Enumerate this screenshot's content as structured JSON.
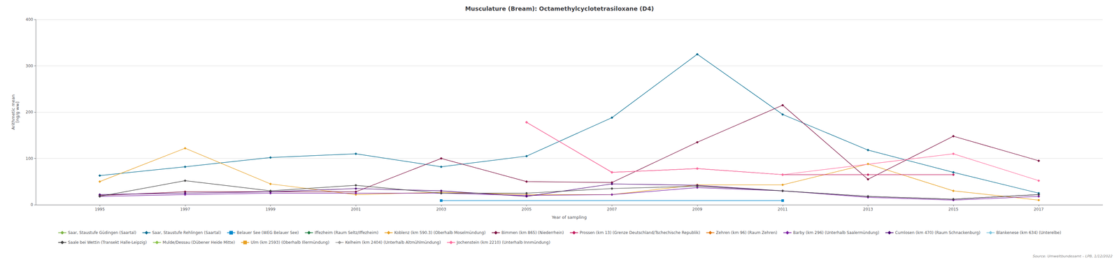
{
  "chart_data": {
    "type": "line",
    "title": "Musculature (Bream): Octamethylcyclotetrasiloxane (D4)",
    "xlabel": "Year of sampling",
    "ylabel": "Arithmetic mean\n[ng/g ww]",
    "source": "Source: Umweltbundesamt – LPB, 1/12/2022",
    "x": [
      1995,
      1997,
      1999,
      2001,
      2003,
      2005,
      2007,
      2009,
      2011,
      2013,
      2015,
      2017
    ],
    "xlim": [
      1993.5,
      2018.5
    ],
    "xticks": [
      1995,
      1997,
      1999,
      2001,
      2003,
      2005,
      2007,
      2009,
      2011,
      2013,
      2015,
      2017
    ],
    "ylim": [
      0,
      400
    ],
    "yticks": [
      0,
      100,
      200,
      300,
      400
    ],
    "grid": true,
    "legend": "bottom",
    "series": [
      {
        "name": "Saar, Staustufe Güdingen (Saartal)",
        "color": "#7cb342",
        "marker": "diamond",
        "values": [
          null,
          null,
          null,
          null,
          null,
          null,
          null,
          null,
          null,
          null,
          null,
          null
        ]
      },
      {
        "name": "Saar, Staustufe Rehlingen (Saartal)",
        "color": "#006b8f",
        "marker": "diamond",
        "values": [
          63,
          82,
          102,
          110,
          82,
          105,
          188,
          325,
          195,
          118,
          70,
          25
        ]
      },
      {
        "name": "Belauer See (WEG Belauer See)",
        "color": "#0088cc",
        "marker": "square",
        "values": [
          null,
          null,
          null,
          null,
          9,
          null,
          null,
          null,
          9,
          null,
          null,
          null
        ]
      },
      {
        "name": "Iffezheim (Raum Seltz/Iffezheim)",
        "color": "#1b7a3e",
        "marker": "diamond",
        "values": [
          null,
          null,
          null,
          null,
          null,
          null,
          null,
          null,
          null,
          null,
          null,
          null
        ]
      },
      {
        "name": "Koblenz (km 590.3) (Oberhalb Moselmündung)",
        "color": "#e8a020",
        "marker": "diamond",
        "values": [
          50,
          122,
          45,
          22,
          27,
          22,
          22,
          43,
          43,
          88,
          30,
          10
        ]
      },
      {
        "name": "Bimmen (km 865) (Niederrhein)",
        "color": "#7b0d3e",
        "marker": "diamond",
        "values": [
          20,
          28,
          28,
          28,
          100,
          50,
          48,
          135,
          215,
          55,
          148,
          95
        ]
      },
      {
        "name": "Prossen (km 13) (Grenze Deutschland/Tschechische Republik)",
        "color": "#c2185b",
        "marker": "diamond",
        "values": [
          null,
          null,
          null,
          null,
          null,
          178,
          70,
          78,
          65,
          65,
          65,
          null
        ]
      },
      {
        "name": "Zehren (km 96) (Raum Zehren)",
        "color": "#e07000",
        "marker": "diamond",
        "values": [
          null,
          null,
          null,
          null,
          null,
          null,
          null,
          null,
          null,
          null,
          null,
          null
        ]
      },
      {
        "name": "Barby (km 296) (Unterhalb Saalermündung)",
        "color": "#7b1fa2",
        "marker": "diamond",
        "values": [
          18,
          22,
          25,
          25,
          25,
          20,
          22,
          37,
          30,
          16,
          10,
          18
        ]
      },
      {
        "name": "Cumlosen (km 470) (Raum Schnackenburg)",
        "color": "#4a0072",
        "marker": "diamond",
        "values": [
          22,
          25,
          28,
          35,
          30,
          18,
          45,
          42,
          30,
          18,
          12,
          22
        ]
      },
      {
        "name": "Blankenese (km 634) (Unterelbe)",
        "color": "#80c8e0",
        "marker": "diamond",
        "values": [
          null,
          null,
          null,
          null,
          null,
          null,
          null,
          null,
          null,
          null,
          null,
          null
        ]
      },
      {
        "name": "Saale bei Wettin (Transekt Halle-Leipzig)",
        "color": "#424242",
        "marker": "diamond",
        "values": [
          18,
          52,
          30,
          42,
          25,
          25,
          35,
          40,
          30,
          18,
          12,
          22
        ]
      },
      {
        "name": "Mulde/Dessau (Dübener Heide Mitte)",
        "color": "#8bc34a",
        "marker": "diamond",
        "values": [
          null,
          null,
          null,
          null,
          null,
          null,
          null,
          null,
          null,
          null,
          null,
          null
        ]
      },
      {
        "name": "Ulm (km 2593) (Oberhalb Illermündung)",
        "color": "#e8a020",
        "marker": "square",
        "values": [
          null,
          null,
          null,
          null,
          null,
          null,
          null,
          null,
          null,
          null,
          null,
          null
        ]
      },
      {
        "name": "Kelheim (km 2404) (Unterhalb Altmühlmündung)",
        "color": "#9e9e9e",
        "marker": "diamond",
        "values": [
          null,
          null,
          null,
          null,
          null,
          null,
          null,
          null,
          null,
          null,
          null,
          null
        ]
      },
      {
        "name": "Jochenstein (km 2210) (Unterhalb Innmündung)",
        "color": "#ff6b9d",
        "marker": "diamond",
        "values": [
          null,
          null,
          null,
          null,
          null,
          178,
          70,
          78,
          65,
          null,
          110,
          52
        ]
      }
    ]
  }
}
